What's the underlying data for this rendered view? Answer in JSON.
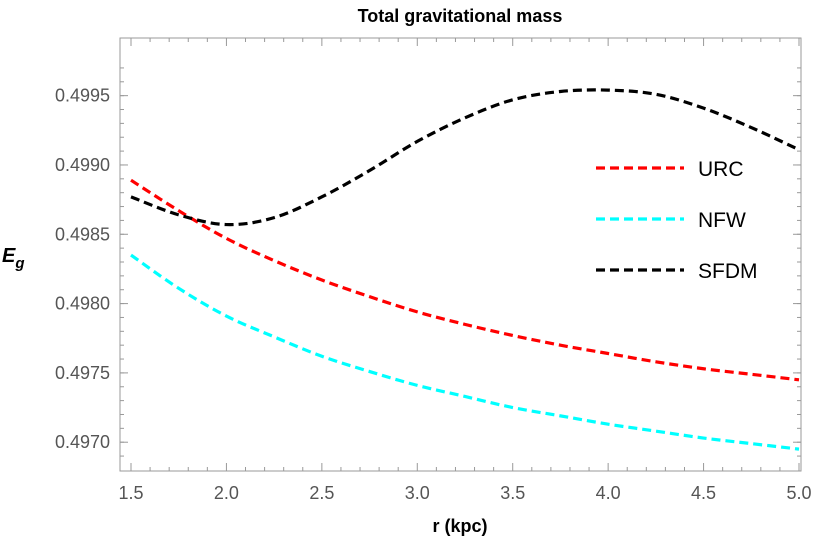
{
  "chart_data": {
    "type": "line",
    "title": "Total gravitational mass",
    "xlabel": "r (kpc)",
    "ylabel": {
      "main": "E",
      "sub": "g"
    },
    "xlim": [
      1.5,
      5.0
    ],
    "ylim": [
      0.49685,
      0.49975
    ],
    "xticks": [
      "1.5",
      "2.0",
      "2.5",
      "3.0",
      "3.5",
      "4.0",
      "4.5",
      "5.0"
    ],
    "yticks": [
      "0.4970",
      "0.4975",
      "0.4980",
      "0.4985",
      "0.4990",
      "0.4995"
    ],
    "grid": false,
    "legend_position": "right",
    "series": [
      {
        "name": "URC",
        "color": "#ff0000",
        "dashed": true,
        "x": [
          1.5,
          1.75,
          2.0,
          2.25,
          2.5,
          2.75,
          3.0,
          3.25,
          3.5,
          3.75,
          4.0,
          4.25,
          4.5,
          4.75,
          5.0
        ],
        "y": [
          0.49889,
          0.49867,
          0.49847,
          0.49831,
          0.49817,
          0.49805,
          0.49794,
          0.49785,
          0.49777,
          0.4977,
          0.49764,
          0.49758,
          0.49753,
          0.49749,
          0.49745
        ]
      },
      {
        "name": "NFW",
        "color": "#00ffff",
        "dashed": true,
        "x": [
          1.5,
          1.75,
          2.0,
          2.25,
          2.5,
          2.75,
          3.0,
          3.25,
          3.5,
          3.75,
          4.0,
          4.25,
          4.5,
          4.75,
          5.0
        ],
        "y": [
          0.49835,
          0.49811,
          0.49791,
          0.49776,
          0.49762,
          0.49751,
          0.49741,
          0.49733,
          0.49725,
          0.49719,
          0.49713,
          0.49708,
          0.49703,
          0.49699,
          0.49695
        ]
      },
      {
        "name": "SFDM",
        "color": "#000000",
        "dashed": true,
        "x": [
          1.5,
          1.75,
          2.0,
          2.25,
          2.5,
          2.75,
          3.0,
          3.25,
          3.5,
          3.75,
          4.0,
          4.25,
          4.5,
          4.75,
          5.0
        ],
        "y": [
          0.49877,
          0.49864,
          0.49857,
          0.49862,
          0.49877,
          0.49896,
          0.49917,
          0.49934,
          0.49947,
          0.49953,
          0.49954,
          0.49951,
          0.49941,
          0.49927,
          0.49911
        ]
      }
    ]
  }
}
